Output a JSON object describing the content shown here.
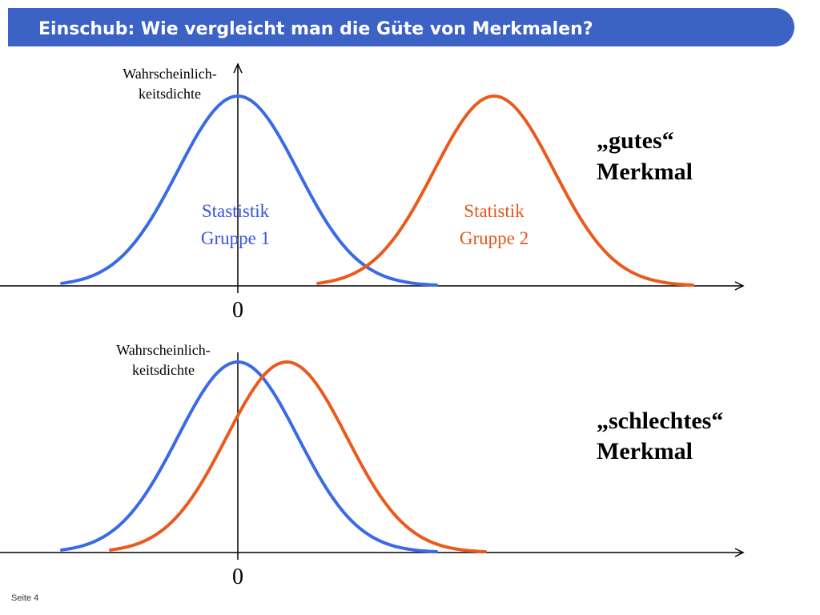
{
  "header": {
    "title": "Einschub: Wie vergleicht man die Güte von Merkmalen?"
  },
  "panels": [
    {
      "y_axis_label": [
        "Wahrscheinlich-",
        "keitsdichte"
      ],
      "origin_label": "0",
      "groups": [
        {
          "label": [
            "Stastistik",
            "Gruppe 1"
          ]
        },
        {
          "label": [
            "Statistik",
            "Gruppe 2"
          ]
        }
      ],
      "verdict": [
        "„gutes“",
        "Merkmal"
      ]
    },
    {
      "y_axis_label": [
        "Wahrscheinlich-",
        "keitsdichte"
      ],
      "origin_label": "0",
      "verdict": [
        "„schlechtes“",
        "Merkmal"
      ]
    }
  ],
  "footer": {
    "page": "Seite 4"
  }
}
